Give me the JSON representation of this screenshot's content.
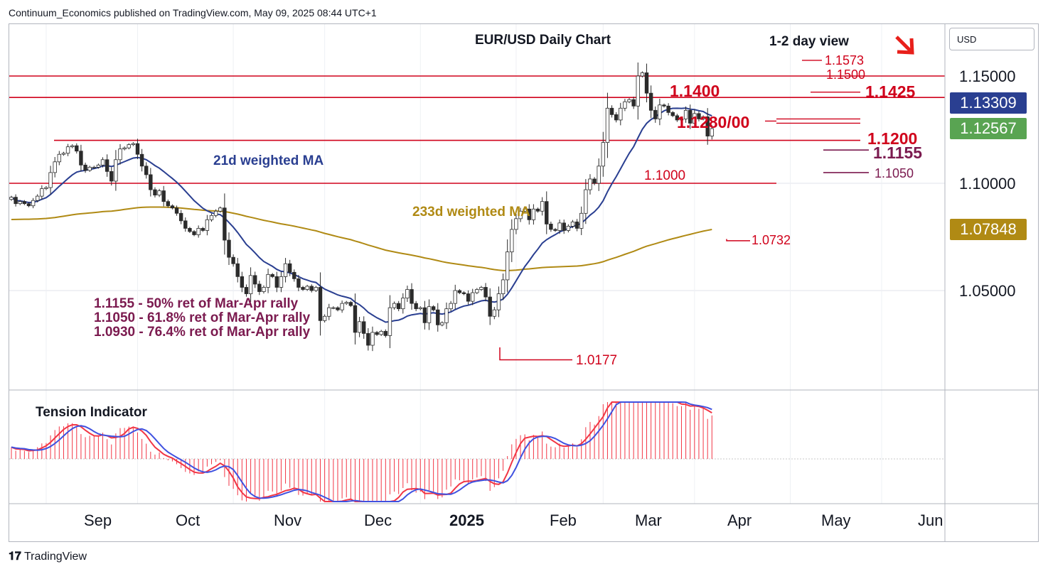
{
  "publisher": "Continuum_Economics published on TradingView.com, May 09, 2025 08:44 UTC+1",
  "footer_logo": "TradingView",
  "currency": "USD",
  "chart_data": {
    "type": "candlestick",
    "title": "EUR/USD Daily Chart",
    "subtitle": "1-2 day view",
    "view_direction": "down",
    "y_scale": {
      "min": 1.0,
      "max": 1.16,
      "tick_labels": [
        "1.15000",
        "1.10000",
        "1.05000"
      ],
      "tick_values": [
        1.15,
        1.1,
        1.05
      ]
    },
    "x_axis_labels": [
      "Sep",
      "Oct",
      "Nov",
      "Dec",
      "2025",
      "Feb",
      "Mar",
      "Apr",
      "May",
      "Jun"
    ],
    "x_axis_index": [
      8,
      29,
      51,
      72,
      94,
      116,
      136,
      157,
      179,
      200
    ],
    "price_badges": [
      {
        "label": "1.13309",
        "value": 1.13309,
        "color": "#2a3f91"
      },
      {
        "label": "1.12567",
        "value": 1.12567,
        "color": "#59a452"
      },
      {
        "label": "1.07848",
        "value": 1.07848,
        "color": "#b08a14"
      }
    ],
    "closes": [
      1.0935,
      1.0905,
      1.0915,
      1.0905,
      1.0895,
      1.092,
      1.094,
      1.0975,
      1.098,
      1.105,
      1.11,
      1.1135,
      1.114,
      1.117,
      1.1175,
      1.115,
      1.1085,
      1.106,
      1.1075,
      1.1075,
      1.1085,
      1.111,
      1.1055,
      1.101,
      1.111,
      1.116,
      1.1165,
      1.118,
      1.1185,
      1.1135,
      1.108,
      1.104,
      1.097,
      1.0945,
      1.0965,
      1.0915,
      1.0895,
      1.0885,
      1.086,
      1.0825,
      1.079,
      1.0775,
      1.076,
      1.079,
      1.078,
      1.083,
      1.085,
      1.087,
      1.0885,
      1.0735,
      1.0655,
      1.0625,
      1.0565,
      1.0515,
      1.0485,
      1.057,
      1.053,
      1.0495,
      1.0515,
      1.0575,
      1.0565,
      1.0515,
      1.0565,
      1.0625,
      1.0585,
      1.0555,
      1.0515,
      1.0505,
      1.052,
      1.05,
      1.0515,
      1.036,
      1.038,
      1.042,
      1.042,
      1.041,
      1.044,
      1.0445,
      1.043,
      1.0305,
      1.0355,
      1.03,
      1.0245,
      1.0305,
      1.0295,
      1.031,
      1.029,
      1.042,
      1.044,
      1.0415,
      1.0465,
      1.0505,
      1.044,
      1.0415,
      1.042,
      1.035,
      1.0425,
      1.041,
      1.034,
      1.035,
      1.0415,
      1.044,
      1.05,
      1.049,
      1.0485,
      1.045,
      1.049,
      1.0505,
      1.0515,
      1.047,
      1.038,
      1.041,
      1.0485,
      1.055,
      1.068,
      1.0785,
      1.0835,
      1.087,
      1.088,
      1.083,
      1.088,
      1.087,
      1.0915,
      1.081,
      1.0785,
      1.078,
      1.0815,
      1.078,
      1.08,
      1.082,
      1.079,
      1.086,
      1.097,
      1.102,
      1.1,
      1.108,
      1.119,
      1.135,
      1.132,
      1.1295,
      1.135,
      1.138,
      1.139,
      1.136,
      1.15,
      1.1515,
      1.142,
      1.134,
      1.13,
      1.1365,
      1.136,
      1.133,
      1.1315,
      1.1295,
      1.13,
      1.134,
      1.128,
      1.1325,
      1.13,
      1.131,
      1.122,
      1.1255
    ],
    "ma21_label": "21d weighted MA",
    "ma233_label": "233d weighted MA",
    "resistance_levels": [
      {
        "label": "1.1573",
        "value": 1.1573
      },
      {
        "label": "1.1500",
        "value": 1.15
      },
      {
        "label": "1.1425",
        "value": 1.1425
      },
      {
        "label": "1.1400",
        "value": 1.14
      },
      {
        "label": "1.1280/00",
        "value": 1.129
      },
      {
        "label": "1.1200",
        "value": 1.12
      }
    ],
    "support_levels": [
      {
        "label": "1.1155",
        "value": 1.1155
      },
      {
        "label": "1.1050",
        "value": 1.105
      },
      {
        "label": "1.1000",
        "value": 1.1
      },
      {
        "label": "1.0732",
        "value": 1.0732
      },
      {
        "label": "1.0177",
        "value": 1.0177
      }
    ],
    "retracement_notes": [
      "1.1155 - 50% ret of Mar-Apr rally",
      "1.1050 - 61.8% ret of Mar-Apr rally",
      "1.0930 - 76.4% ret of Mar-Apr rally"
    ],
    "indicator": {
      "title": "Tension Indicator",
      "histogram_color": "#f23645",
      "line_colors": [
        "#f23645",
        "#3f51e0"
      ]
    },
    "colors": {
      "up": "#26a69a",
      "down": "#ef5350",
      "ma21": "#2a3f91",
      "ma233": "#b08a14",
      "levels": "#d0021b",
      "notes": "#7b1a4f"
    }
  }
}
